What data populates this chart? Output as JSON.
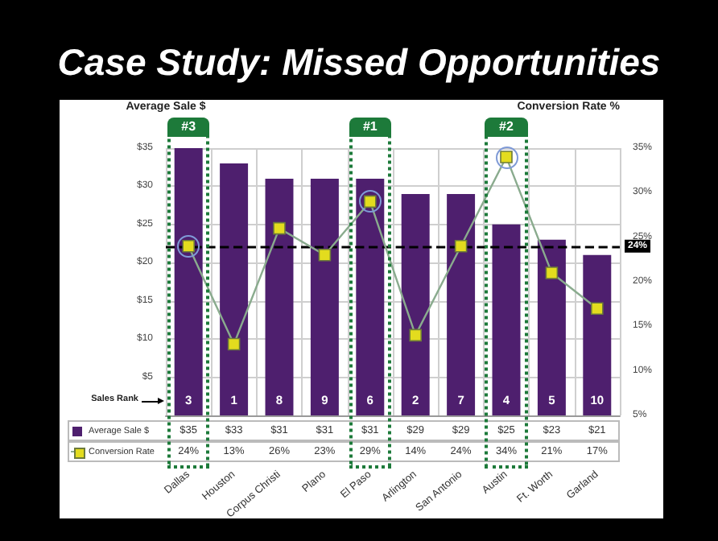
{
  "chart_data": {
    "type": "bar",
    "title": "Case Study: Missed Opportunities",
    "ylabel": "Average Sale $",
    "y2label": "Conversion Rate %",
    "categories": [
      "Dallas",
      "Houston",
      "Corpus Christi",
      "Plano",
      "El Paso",
      "Arlington",
      "San Antonio",
      "Austin",
      "Ft. Worth",
      "Garland"
    ],
    "series": [
      {
        "name": "Average Sale $",
        "color": "#4e1f6e",
        "values": [
          35,
          33,
          31,
          31,
          31,
          29,
          29,
          25,
          23,
          21
        ],
        "value_labels": [
          "$35",
          "$33",
          "$31",
          "$31",
          "$31",
          "$29",
          "$29",
          "$25",
          "$23",
          "$21"
        ]
      },
      {
        "name": "Conversion Rate",
        "type": "line",
        "axis": "y2",
        "color": "#e3dc1e",
        "marker": "square",
        "values": [
          24,
          13,
          26,
          23,
          29,
          14,
          24,
          34,
          21,
          17
        ],
        "value_labels": [
          "24%",
          "13%",
          "26%",
          "23%",
          "29%",
          "14%",
          "24%",
          "34%",
          "21%",
          "17%"
        ]
      }
    ],
    "ylim": [
      0,
      35
    ],
    "yticks": [
      {
        "value": 5,
        "label": "$5"
      },
      {
        "value": 10,
        "label": "$10"
      },
      {
        "value": 15,
        "label": "$15"
      },
      {
        "value": 20,
        "label": "$20"
      },
      {
        "value": 25,
        "label": "$25"
      },
      {
        "value": 30,
        "label": "$30"
      },
      {
        "value": 35,
        "label": "$35"
      }
    ],
    "y2lim": [
      5,
      35
    ],
    "y2ticks": [
      {
        "value": 5,
        "label": "5%"
      },
      {
        "value": 10,
        "label": "10%"
      },
      {
        "value": 15,
        "label": "15%"
      },
      {
        "value": 20,
        "label": "20%"
      },
      {
        "value": 25,
        "label": "25%"
      },
      {
        "value": 30,
        "label": "30%"
      },
      {
        "value": 35,
        "label": "35%"
      }
    ],
    "ref_lines": [
      {
        "axis": "y2",
        "value": 24,
        "label": "24%",
        "color": "#000000",
        "line_style": "dashed"
      }
    ],
    "annotations": [
      "Sales Rank",
      {
        "text": "3",
        "x": "Dallas",
        "y": 2
      },
      {
        "text": "1",
        "x": "Houston",
        "y": 2
      },
      {
        "text": "8",
        "x": "Corpus Christi",
        "y": 2
      },
      {
        "text": "9",
        "x": "Plano",
        "y": 2
      },
      {
        "text": "6",
        "x": "El Paso",
        "y": 2
      },
      {
        "text": "2",
        "x": "Arlington",
        "y": 2
      },
      {
        "text": "7",
        "x": "San Antonio",
        "y": 2
      },
      {
        "text": "4",
        "x": "Austin",
        "y": 2
      },
      {
        "text": "5",
        "x": "Ft. Worth",
        "y": 2
      },
      {
        "text": "10",
        "x": "Garland",
        "y": 2
      },
      "#3",
      "#1",
      "#2"
    ],
    "grid": true,
    "legend": "bottom"
  }
}
